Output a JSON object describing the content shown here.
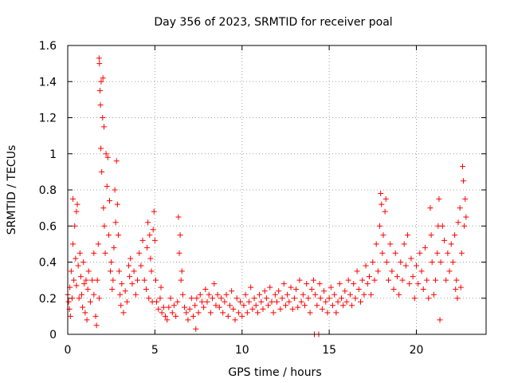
{
  "chart_data": {
    "type": "scatter",
    "title": "Day 356 of 2023, SRMTID for receiver poal",
    "xlabel": "GPS time / hours",
    "ylabel": "SRMTID / TECUs",
    "xlim": [
      0,
      24
    ],
    "ylim": [
      0,
      1.6
    ],
    "xticks": [
      0,
      5,
      10,
      15,
      20
    ],
    "xtick_labels": [
      "0",
      "5",
      "10",
      "15",
      "20"
    ],
    "yticks": [
      0,
      0.2,
      0.4,
      0.6,
      0.8,
      1.0,
      1.2,
      1.4,
      1.6
    ],
    "ytick_labels": [
      "0",
      "0.2",
      "0.4",
      "0.6",
      "0.8",
      "1",
      "1.2",
      "1.4",
      "1.6"
    ],
    "grid": true,
    "marker": "+",
    "marker_color": "#ff0000",
    "series": [
      {
        "name": "SRMTID",
        "points": [
          [
            0.0,
            0.22
          ],
          [
            0.05,
            0.18
          ],
          [
            0.1,
            0.14
          ],
          [
            0.12,
            0.26
          ],
          [
            0.15,
            0.1
          ],
          [
            0.2,
            0.35
          ],
          [
            0.25,
            0.2
          ],
          [
            0.3,
            0.5
          ],
          [
            0.3,
            0.75
          ],
          [
            0.35,
            0.3
          ],
          [
            0.4,
            0.6
          ],
          [
            0.45,
            0.42
          ],
          [
            0.5,
            0.68
          ],
          [
            0.5,
            0.27
          ],
          [
            0.55,
            0.72
          ],
          [
            0.6,
            0.38
          ],
          [
            0.65,
            0.2
          ],
          [
            0.7,
            0.45
          ],
          [
            0.75,
            0.32
          ],
          [
            0.8,
            0.22
          ],
          [
            0.85,
            0.15
          ],
          [
            0.9,
            0.4
          ],
          [
            0.95,
            0.28
          ],
          [
            1.0,
            0.12
          ],
          [
            1.05,
            0.3
          ],
          [
            1.1,
            0.08
          ],
          [
            1.15,
            0.25
          ],
          [
            1.2,
            0.35
          ],
          [
            1.3,
            0.18
          ],
          [
            1.4,
            0.3
          ],
          [
            1.5,
            0.45
          ],
          [
            1.5,
            0.22
          ],
          [
            1.6,
            0.1
          ],
          [
            1.65,
            0.05
          ],
          [
            1.7,
            0.3
          ],
          [
            1.75,
            0.5
          ],
          [
            1.8,
            0.2
          ],
          [
            1.8,
            1.53
          ],
          [
            1.82,
            1.5
          ],
          [
            1.85,
            1.35
          ],
          [
            1.88,
            1.27
          ],
          [
            1.9,
            1.03
          ],
          [
            1.92,
            1.4
          ],
          [
            1.95,
            0.9
          ],
          [
            2.0,
            1.2
          ],
          [
            2.02,
            1.42
          ],
          [
            2.05,
            0.7
          ],
          [
            2.08,
            1.15
          ],
          [
            2.1,
            0.6
          ],
          [
            2.15,
            0.45
          ],
          [
            2.2,
            1.0
          ],
          [
            2.25,
            0.82
          ],
          [
            2.3,
            0.98
          ],
          [
            2.35,
            0.55
          ],
          [
            2.4,
            0.74
          ],
          [
            2.45,
            0.35
          ],
          [
            2.5,
            0.4
          ],
          [
            2.55,
            0.25
          ],
          [
            2.6,
            0.3
          ],
          [
            2.65,
            0.48
          ],
          [
            2.7,
            0.8
          ],
          [
            2.75,
            0.62
          ],
          [
            2.8,
            0.96
          ],
          [
            2.85,
            0.72
          ],
          [
            2.9,
            0.55
          ],
          [
            2.95,
            0.35
          ],
          [
            3.0,
            0.22
          ],
          [
            3.05,
            0.16
          ],
          [
            3.1,
            0.28
          ],
          [
            3.2,
            0.12
          ],
          [
            3.3,
            0.24
          ],
          [
            3.4,
            0.18
          ],
          [
            3.5,
            0.38
          ],
          [
            3.55,
            0.32
          ],
          [
            3.6,
            0.42
          ],
          [
            3.7,
            0.28
          ],
          [
            3.8,
            0.35
          ],
          [
            3.9,
            0.22
          ],
          [
            4.0,
            0.3
          ],
          [
            4.1,
            0.45
          ],
          [
            4.2,
            0.38
          ],
          [
            4.3,
            0.52
          ],
          [
            4.4,
            0.3
          ],
          [
            4.5,
            0.25
          ],
          [
            4.55,
            0.48
          ],
          [
            4.6,
            0.62
          ],
          [
            4.65,
            0.2
          ],
          [
            4.7,
            0.55
          ],
          [
            4.75,
            0.42
          ],
          [
            4.8,
            0.35
          ],
          [
            4.85,
            0.18
          ],
          [
            4.9,
            0.58
          ],
          [
            4.95,
            0.68
          ],
          [
            5.0,
            0.52
          ],
          [
            5.05,
            0.3
          ],
          [
            5.1,
            0.18
          ],
          [
            5.2,
            0.14
          ],
          [
            5.3,
            0.2
          ],
          [
            5.35,
            0.26
          ],
          [
            5.4,
            0.12
          ],
          [
            5.5,
            0.15
          ],
          [
            5.6,
            0.1
          ],
          [
            5.7,
            0.08
          ],
          [
            5.8,
            0.15
          ],
          [
            5.9,
            0.2
          ],
          [
            6.0,
            0.12
          ],
          [
            6.1,
            0.16
          ],
          [
            6.2,
            0.1
          ],
          [
            6.3,
            0.18
          ],
          [
            6.35,
            0.65
          ],
          [
            6.4,
            0.45
          ],
          [
            6.45,
            0.55
          ],
          [
            6.5,
            0.3
          ],
          [
            6.55,
            0.35
          ],
          [
            6.6,
            0.22
          ],
          [
            6.7,
            0.15
          ],
          [
            6.8,
            0.12
          ],
          [
            6.9,
            0.08
          ],
          [
            7.0,
            0.14
          ],
          [
            7.1,
            0.2
          ],
          [
            7.2,
            0.1
          ],
          [
            7.3,
            0.16
          ],
          [
            7.35,
            0.03
          ],
          [
            7.4,
            0.2
          ],
          [
            7.5,
            0.12
          ],
          [
            7.6,
            0.22
          ],
          [
            7.7,
            0.18
          ],
          [
            7.8,
            0.15
          ],
          [
            7.9,
            0.25
          ],
          [
            8.0,
            0.18
          ],
          [
            8.1,
            0.22
          ],
          [
            8.2,
            0.12
          ],
          [
            8.3,
            0.2
          ],
          [
            8.4,
            0.28
          ],
          [
            8.5,
            0.16
          ],
          [
            8.6,
            0.22
          ],
          [
            8.7,
            0.15
          ],
          [
            8.8,
            0.2
          ],
          [
            8.9,
            0.12
          ],
          [
            9.0,
            0.18
          ],
          [
            9.1,
            0.22
          ],
          [
            9.2,
            0.1
          ],
          [
            9.3,
            0.16
          ],
          [
            9.4,
            0.24
          ],
          [
            9.5,
            0.14
          ],
          [
            9.6,
            0.08
          ],
          [
            9.7,
            0.2
          ],
          [
            9.8,
            0.12
          ],
          [
            9.9,
            0.18
          ],
          [
            10.0,
            0.1
          ],
          [
            10.1,
            0.16
          ],
          [
            10.2,
            0.22
          ],
          [
            10.3,
            0.12
          ],
          [
            10.4,
            0.18
          ],
          [
            10.5,
            0.26
          ],
          [
            10.6,
            0.14
          ],
          [
            10.7,
            0.2
          ],
          [
            10.8,
            0.16
          ],
          [
            10.9,
            0.12
          ],
          [
            11.0,
            0.22
          ],
          [
            11.1,
            0.18
          ],
          [
            11.2,
            0.14
          ],
          [
            11.3,
            0.24
          ],
          [
            11.4,
            0.2
          ],
          [
            11.5,
            0.16
          ],
          [
            11.6,
            0.26
          ],
          [
            11.7,
            0.18
          ],
          [
            11.8,
            0.12
          ],
          [
            11.9,
            0.22
          ],
          [
            12.0,
            0.18
          ],
          [
            12.1,
            0.24
          ],
          [
            12.2,
            0.14
          ],
          [
            12.3,
            0.2
          ],
          [
            12.4,
            0.28
          ],
          [
            12.5,
            0.16
          ],
          [
            12.6,
            0.22
          ],
          [
            12.7,
            0.18
          ],
          [
            12.8,
            0.26
          ],
          [
            12.9,
            0.14
          ],
          [
            13.0,
            0.2
          ],
          [
            13.1,
            0.25
          ],
          [
            13.2,
            0.15
          ],
          [
            13.3,
            0.3
          ],
          [
            13.4,
            0.18
          ],
          [
            13.5,
            0.22
          ],
          [
            13.6,
            0.16
          ],
          [
            13.7,
            0.28
          ],
          [
            13.8,
            0.2
          ],
          [
            13.9,
            0.12
          ],
          [
            14.0,
            0.25
          ],
          [
            14.1,
            0.3
          ],
          [
            14.15,
            0.0
          ],
          [
            14.2,
            0.22
          ],
          [
            14.3,
            0.16
          ],
          [
            14.4,
            0.0
          ],
          [
            14.45,
            0.28
          ],
          [
            14.5,
            0.2
          ],
          [
            14.6,
            0.14
          ],
          [
            14.7,
            0.24
          ],
          [
            14.8,
            0.18
          ],
          [
            14.9,
            0.12
          ],
          [
            15.0,
            0.2
          ],
          [
            15.1,
            0.26
          ],
          [
            15.2,
            0.16
          ],
          [
            15.3,
            0.22
          ],
          [
            15.4,
            0.12
          ],
          [
            15.5,
            0.18
          ],
          [
            15.6,
            0.28
          ],
          [
            15.7,
            0.2
          ],
          [
            15.8,
            0.16
          ],
          [
            15.9,
            0.24
          ],
          [
            16.0,
            0.18
          ],
          [
            16.1,
            0.3
          ],
          [
            16.2,
            0.22
          ],
          [
            16.3,
            0.16
          ],
          [
            16.4,
            0.28
          ],
          [
            16.5,
            0.2
          ],
          [
            16.6,
            0.35
          ],
          [
            16.7,
            0.25
          ],
          [
            16.8,
            0.18
          ],
          [
            16.9,
            0.3
          ],
          [
            17.0,
            0.22
          ],
          [
            17.1,
            0.38
          ],
          [
            17.2,
            0.28
          ],
          [
            17.3,
            0.32
          ],
          [
            17.4,
            0.22
          ],
          [
            17.5,
            0.4
          ],
          [
            17.6,
            0.3
          ],
          [
            17.7,
            0.5
          ],
          [
            17.8,
            0.35
          ],
          [
            17.9,
            0.6
          ],
          [
            17.95,
            0.78
          ],
          [
            18.0,
            0.72
          ],
          [
            18.05,
            0.45
          ],
          [
            18.1,
            0.55
          ],
          [
            18.2,
            0.68
          ],
          [
            18.25,
            0.75
          ],
          [
            18.3,
            0.4
          ],
          [
            18.4,
            0.3
          ],
          [
            18.5,
            0.5
          ],
          [
            18.6,
            0.35
          ],
          [
            18.7,
            0.25
          ],
          [
            18.8,
            0.45
          ],
          [
            18.9,
            0.32
          ],
          [
            19.0,
            0.22
          ],
          [
            19.1,
            0.4
          ],
          [
            19.2,
            0.3
          ],
          [
            19.3,
            0.5
          ],
          [
            19.4,
            0.38
          ],
          [
            19.5,
            0.55
          ],
          [
            19.6,
            0.28
          ],
          [
            19.7,
            0.42
          ],
          [
            19.8,
            0.32
          ],
          [
            19.9,
            0.2
          ],
          [
            20.0,
            0.38
          ],
          [
            20.1,
            0.28
          ],
          [
            20.2,
            0.45
          ],
          [
            20.3,
            0.35
          ],
          [
            20.4,
            0.25
          ],
          [
            20.5,
            0.48
          ],
          [
            20.6,
            0.3
          ],
          [
            20.7,
            0.2
          ],
          [
            20.8,
            0.7
          ],
          [
            20.85,
            0.55
          ],
          [
            20.9,
            0.4
          ],
          [
            21.0,
            0.22
          ],
          [
            21.1,
            0.3
          ],
          [
            21.2,
            0.45
          ],
          [
            21.25,
            0.6
          ],
          [
            21.3,
            0.75
          ],
          [
            21.35,
            0.08
          ],
          [
            21.4,
            0.4
          ],
          [
            21.5,
            0.6
          ],
          [
            21.6,
            0.52
          ],
          [
            21.7,
            0.3
          ],
          [
            21.8,
            0.45
          ],
          [
            21.9,
            0.35
          ],
          [
            22.0,
            0.5
          ],
          [
            22.1,
            0.4
          ],
          [
            22.2,
            0.55
          ],
          [
            22.25,
            0.25
          ],
          [
            22.3,
            0.3
          ],
          [
            22.35,
            0.2
          ],
          [
            22.4,
            0.62
          ],
          [
            22.5,
            0.7
          ],
          [
            22.55,
            0.26
          ],
          [
            22.6,
            0.45
          ],
          [
            22.65,
            0.93
          ],
          [
            22.7,
            0.85
          ],
          [
            22.75,
            0.6
          ],
          [
            22.8,
            0.75
          ],
          [
            22.85,
            0.65
          ]
        ]
      }
    ]
  }
}
